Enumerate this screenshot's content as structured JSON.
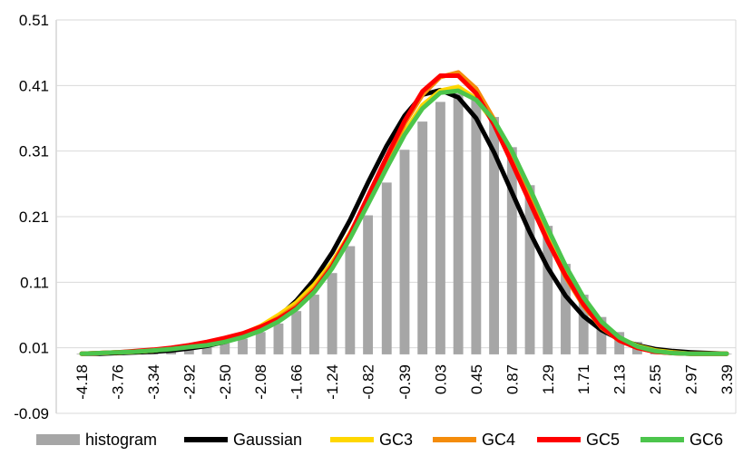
{
  "chart_data": {
    "type": "bar+line",
    "title": "",
    "xlabel": "",
    "ylabel": "",
    "ylim": [
      -0.09,
      0.51
    ],
    "yticks": [
      "0.51",
      "0.41",
      "0.31",
      "0.21",
      "0.11",
      "0.01",
      "-0.09"
    ],
    "ytick_values": [
      0.51,
      0.41,
      0.31,
      0.21,
      0.11,
      0.01,
      -0.09
    ],
    "gridlines": true,
    "legend_position": "bottom",
    "x_tick_labels": [
      "-4.18",
      "-3.76",
      "-3.34",
      "-2.92",
      "-2.50",
      "-2.08",
      "-1.66",
      "-1.24",
      "-0.82",
      "-0.39",
      "0.03",
      "0.45",
      "0.87",
      "1.29",
      "1.71",
      "2.13",
      "2.55",
      "2.97",
      "3.39"
    ],
    "x": [
      -4.18,
      -3.97,
      -3.76,
      -3.55,
      -3.34,
      -3.13,
      -2.92,
      -2.71,
      -2.5,
      -2.29,
      -2.08,
      -1.87,
      -1.66,
      -1.45,
      -1.24,
      -1.03,
      -0.82,
      -0.6,
      -0.39,
      -0.18,
      0.03,
      0.24,
      0.45,
      0.66,
      0.87,
      1.08,
      1.29,
      1.5,
      1.71,
      1.92,
      2.13,
      2.34,
      2.55,
      2.76,
      2.97,
      3.18,
      3.39
    ],
    "series": [
      {
        "name": "histogram",
        "kind": "bar",
        "color": "#a6a6a6",
        "values": [
          0.001,
          0.001,
          0.002,
          0.003,
          0.004,
          0.006,
          0.009,
          0.012,
          0.017,
          0.024,
          0.034,
          0.047,
          0.066,
          0.091,
          0.124,
          0.165,
          0.212,
          0.262,
          0.312,
          0.355,
          0.385,
          0.398,
          0.39,
          0.362,
          0.316,
          0.258,
          0.196,
          0.138,
          0.091,
          0.057,
          0.034,
          0.019,
          0.01,
          0.005,
          0.003,
          0.002,
          0.001
        ]
      },
      {
        "name": "Gaussian",
        "kind": "line",
        "color": "#000000",
        "values": [
          0.001,
          0.001,
          0.002,
          0.003,
          0.004,
          0.006,
          0.009,
          0.013,
          0.019,
          0.027,
          0.039,
          0.057,
          0.082,
          0.114,
          0.155,
          0.205,
          0.262,
          0.318,
          0.364,
          0.396,
          0.403,
          0.392,
          0.36,
          0.308,
          0.247,
          0.186,
          0.132,
          0.089,
          0.058,
          0.037,
          0.023,
          0.014,
          0.008,
          0.005,
          0.003,
          0.002,
          0.001
        ]
      },
      {
        "name": "GC3",
        "kind": "line",
        "color": "#ffd700",
        "values": [
          0.001,
          0.002,
          0.003,
          0.004,
          0.006,
          0.009,
          0.012,
          0.017,
          0.023,
          0.031,
          0.043,
          0.06,
          0.079,
          0.106,
          0.14,
          0.185,
          0.236,
          0.289,
          0.339,
          0.38,
          0.402,
          0.408,
          0.39,
          0.353,
          0.3,
          0.238,
          0.176,
          0.122,
          0.079,
          0.046,
          0.025,
          0.013,
          0.006,
          0.003,
          0.001,
          0.001,
          0.001
        ]
      },
      {
        "name": "GC4",
        "kind": "line",
        "color": "#f48c0b",
        "values": [
          0.001,
          0.002,
          0.003,
          0.004,
          0.006,
          0.009,
          0.012,
          0.016,
          0.022,
          0.03,
          0.041,
          0.056,
          0.074,
          0.1,
          0.137,
          0.183,
          0.237,
          0.296,
          0.352,
          0.396,
          0.423,
          0.43,
          0.405,
          0.358,
          0.3,
          0.236,
          0.174,
          0.118,
          0.074,
          0.041,
          0.021,
          0.01,
          0.004,
          0.002,
          0.001,
          0.001,
          0.001
        ]
      },
      {
        "name": "GC5",
        "kind": "line",
        "color": "#ff0000",
        "values": [
          0.001,
          0.002,
          0.003,
          0.005,
          0.007,
          0.01,
          0.014,
          0.019,
          0.025,
          0.032,
          0.042,
          0.054,
          0.071,
          0.097,
          0.134,
          0.183,
          0.241,
          0.301,
          0.356,
          0.401,
          0.425,
          0.425,
          0.398,
          0.35,
          0.292,
          0.232,
          0.172,
          0.12,
          0.076,
          0.042,
          0.021,
          0.01,
          0.004,
          0.002,
          0.001,
          0.001,
          0.001
        ]
      },
      {
        "name": "GC6",
        "kind": "line",
        "color": "#4cc54c",
        "values": [
          0.001,
          0.002,
          0.003,
          0.004,
          0.006,
          0.008,
          0.011,
          0.014,
          0.019,
          0.026,
          0.036,
          0.05,
          0.069,
          0.095,
          0.131,
          0.177,
          0.229,
          0.284,
          0.335,
          0.375,
          0.399,
          0.402,
          0.388,
          0.357,
          0.31,
          0.253,
          0.192,
          0.135,
          0.087,
          0.05,
          0.026,
          0.012,
          0.005,
          0.002,
          0.001,
          0.001,
          0.001
        ]
      }
    ]
  }
}
